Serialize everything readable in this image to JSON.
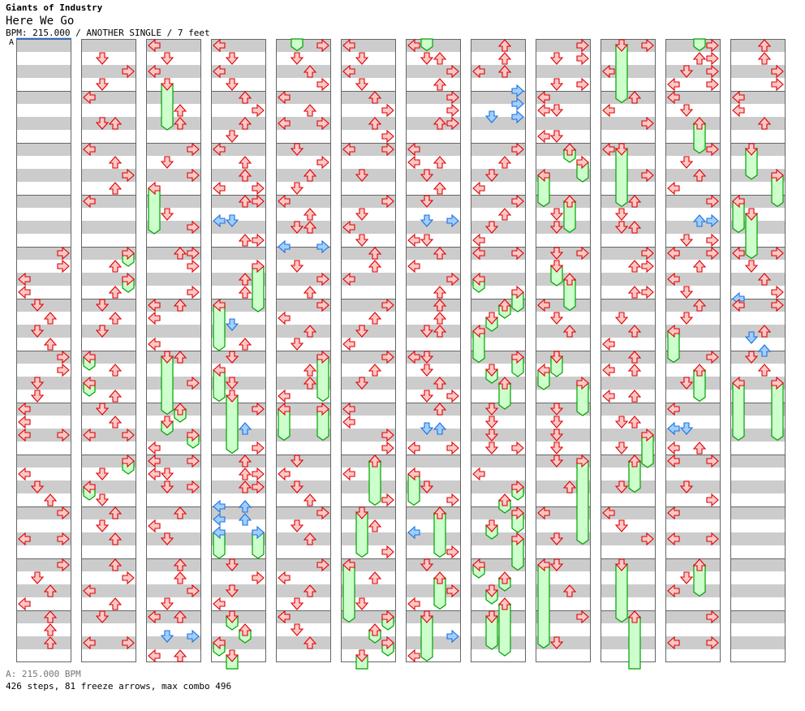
{
  "song": {
    "artist": "Giants of Industry",
    "title": "Here We Go",
    "info": "BPM: 215.000 / ANOTHER SINGLE / 7 feet"
  },
  "bpm_marker": {
    "label": "A",
    "color": "#1e6fd9"
  },
  "footer": {
    "bpm": "A: 215.000 BPM",
    "stats": "426 steps, 81 freeze arrows, max combo 496"
  },
  "colors": {
    "stripe": "#cccccc",
    "border": "#666666",
    "quarter_fill": "#ffc8c8",
    "quarter_stroke": "#dd0000",
    "eighth_fill": "#9fcfff",
    "eighth_stroke": "#1e6fd9",
    "freeze_fill": "#ccffcc",
    "freeze_stroke": "#00a000"
  },
  "chart": {
    "columns": [
      "16R 17R 18L 19L 20D 21U 22D 23U 24R 25R 26D 27D 28L 29L 30L 30R 33L 34D 35U 36R 38L 38R 40R 41D 42U 43L 44U 45U 46U",
      "1D 2R 3D 4L 6D 6U 8L 9U 10R 11U 12L 16R:1 17U 18R:1 19U 20D 21U 22D 24L:1 25U 26L:1 27U 28D 29U 30L 30R 32R:1 33D 34L:1 35D 36U 37D 38U 40U 41R 42L 43U 44D 46L 46R",
      "0L 1D 2L 3D:3.5 5U 6U 8R 9D 10R 11L:3.5 13D 14R 16U 16R 17R 19R 20L 20U 21L 23L 24D:4.4 24U 26R 28U:1 29D:1 30R:1 31L 32L 32R 33L 33D 34D 34R 36U 37L 38D 40U 41U 42R 43D 44L 44U 45.5D 45.5R 47L 47U",
      "0L 1D 2L 3D 4U 5R 6U 7D 8L 9U 10U 11L 11R 12U 12R 13.5L 13.5D 15U 15R 17R:3.5 18U 19U 20L:3.5 21.5D 23U 24D 25L:2.4 26D 27D:4.4 28R 29.5U 31R 32U 33U 33R 34U 34R 35.5L 35.5U 36.5L 36.5U 37.5L:2 37.5R:2 40D 41R 42D 43L 44D:1 45U:1 46L:1 47D:1.4",
      "0R 1D 2U 3R 4L 5U 6L 6R 8D 9R 10U 11D 12L 13U 14D 14U 15.5L 15.5R 17D 18R 19U 20R 21L 22U 23D 24R:3.4 25U 26U 27L 28L:2.4 28R:2.4 32D 33L 34D 35U 36R 37D 38U 40R 41L 42U 43D 44L 45D 46U",
      "0L 1D 2L 3D 4U 5R 6U 7R 8L 8R 10D 12R 13D 14L 15D 16U 17U 18L 20R 21U 22D 23L 24R 25U 26D 28L 29L 30R 31R 32U:3.4 33L 35R 36D:3.4 37U 39R 40L:4.4 41U 43D 44R:1 45U:1 46R:1 47D:1.4",
      "0L 1D 1U 2R 3U 4R 5R 6U 6R 8L 9L 9U 10D 11U 12D 13.5D 13.5R 15L 15D 16U 17L 18R 19U 20U 21U 22D 22U 24L 24D 25D 26U 27D 27R 28U 29.5D 29.5U 31L 31R 33L:2.4 34D 35R 36U:3.4 37.5L 39R 40D 41U:2.4 42R 43L 44D:3.4 45.5R 47L",
      "0U 1U 2L 2U 3.5R 4.5R 5.5D 5.5R 8R 9U 10D 11L 12R 13U 14D 15L 16L 16R 18L:1 19R:1.5 20U:1 21D:1 22L:2.4 24R:1.5 25D:1 26U:2 28D 29D 30D 31D 31R 33L 34R:1 35U:1 36R:1.5 37D:1 38R:2.4 40L:1 41U:1 42D:1 43U:4 44D:2.5",
      "0R 1D 1R 3D 3R 4L 5L 5D 7L 7D 8U:1 9R:1.5 10L:2.4 12U:2.4 13D 14D 16D 16R 17D:1.5 18U:2.4 20L 21D 22U 24D:1.5 25L:1.5 26R:2.5 28D 29D 30D 31D 32D 32R:6.4 34U 36L 38D 40L:6.4 40D 42U 44R 46D",
      "0D:4.4 0R 2L 4U 5L 6R 8L 8D:4.4 10R 12U 13D 14D 14U 16R 17U 17R 19U 19R 21D 22U 23L 24U 25L 25U 27L 27U 29D 29U 30R:2.5 31D 32U:2.4 34D 36L 37D 38R 40D:4.4 44U:4.4",
      "0R 1U 1R 2D 2R 3L 3R 4L 5D 6U:2.3 8R 9D 10U 11L 12R 13.5U 13.5R 15D 15R 16L 16R 17U 18L 19D 20U 21D 22L:2.4 24R 25U:2.4 26D 28L 29.5L 29.5D 31L 31U 32L 32R 34D 35R 36L 38L 38R 40U:2.4 41D 42L 44R 46L 46R",
      "0U 1U 2R 3R 4L 5L 6U 8D:2.3 10R:2.4 12L:2.4 13D:3.4 16L 16R 17D 18U 19R 19.5L 20L 20R 22U 22.5D 23.5U 24D 25U 26L:4.4 26R:4.4"
    ]
  }
}
